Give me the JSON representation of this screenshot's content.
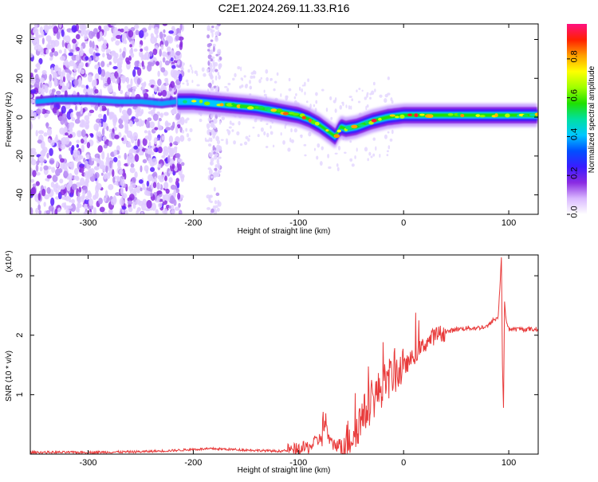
{
  "page_title": "C2E1.2024.269.11.33.R16",
  "chart_data": [
    {
      "type": "heatmap",
      "title": "",
      "xlabel": "Height of straight line (km)",
      "ylabel": "Frequency (Hz)",
      "xlim": [
        -355,
        128
      ],
      "ylim": [
        -50,
        48
      ],
      "x_ticks": [
        -300,
        -200,
        -100,
        0,
        100
      ],
      "y_ticks": [
        -40,
        -20,
        0,
        20,
        40
      ],
      "colorbar": {
        "label": "Normalized spectral amplitude",
        "range": [
          0,
          0.98
        ],
        "ticks": [
          0.0,
          0.2,
          0.4,
          0.6,
          0.8
        ],
        "tick_labels": [
          "0.0",
          "0.2",
          "0.4",
          "0.6",
          "0.8"
        ],
        "colors": [
          "#ffffff",
          "#d9b8ff",
          "#8a2be2",
          "#3a1cff",
          "#0050ff",
          "#00c8ff",
          "#00e0a0",
          "#20e000",
          "#a0ff00",
          "#ffff00",
          "#ffa000",
          "#ff2000",
          "#ff1080"
        ]
      },
      "ridge": {
        "x": [
          -350,
          -330,
          -300,
          -270,
          -250,
          -230,
          -215,
          -200,
          -180,
          -160,
          -140,
          -120,
          -100,
          -90,
          -80,
          -70,
          -65,
          -60,
          -55,
          -45,
          -30,
          -15,
          0,
          20,
          50,
          80,
          100,
          128
        ],
        "y": [
          8,
          9,
          9,
          8,
          8,
          7,
          8,
          8,
          7,
          6,
          5,
          3,
          1,
          -1,
          -4,
          -8,
          -10,
          -5,
          -6,
          -5,
          -2,
          0,
          1,
          1,
          1,
          1,
          1,
          1
        ]
      },
      "noise_region": {
        "x": [
          -355,
          -210
        ],
        "y": [
          -50,
          48
        ]
      },
      "stripe_x": -180
    },
    {
      "type": "line",
      "title": "",
      "xlabel": "Height of straight line (km)",
      "ylabel": "SNR (10 * v/v)",
      "y_multiplier_label": "(x10⁴)",
      "xlim": [
        -355,
        128
      ],
      "ylim": [
        0,
        3.35
      ],
      "x_ticks": [
        -300,
        -200,
        -100,
        0,
        100
      ],
      "y_ticks": [
        1,
        2,
        3
      ],
      "color": "#e83a3a",
      "series": [
        {
          "x": [
            -355,
            -300,
            -250,
            -220,
            -200,
            -180,
            -150,
            -120,
            -100,
            -90,
            -80,
            -75,
            -70,
            -60,
            -50,
            -40,
            -30,
            -20,
            -10,
            0,
            10,
            20,
            30,
            40,
            50,
            60,
            70,
            80,
            85,
            90,
            93,
            94,
            95,
            96,
            97,
            100,
            110,
            128
          ],
          "values": [
            0.03,
            0.03,
            0.04,
            0.06,
            0.08,
            0.09,
            0.07,
            0.05,
            0.07,
            0.12,
            0.25,
            0.55,
            0.18,
            0.15,
            0.3,
            0.6,
            0.9,
            1.15,
            1.35,
            1.45,
            1.65,
            1.85,
            2.0,
            2.05,
            2.1,
            2.12,
            2.12,
            2.15,
            2.25,
            2.3,
            3.3,
            1.5,
            0.78,
            2.6,
            2.3,
            2.1,
            2.1,
            2.1
          ]
        }
      ]
    }
  ]
}
